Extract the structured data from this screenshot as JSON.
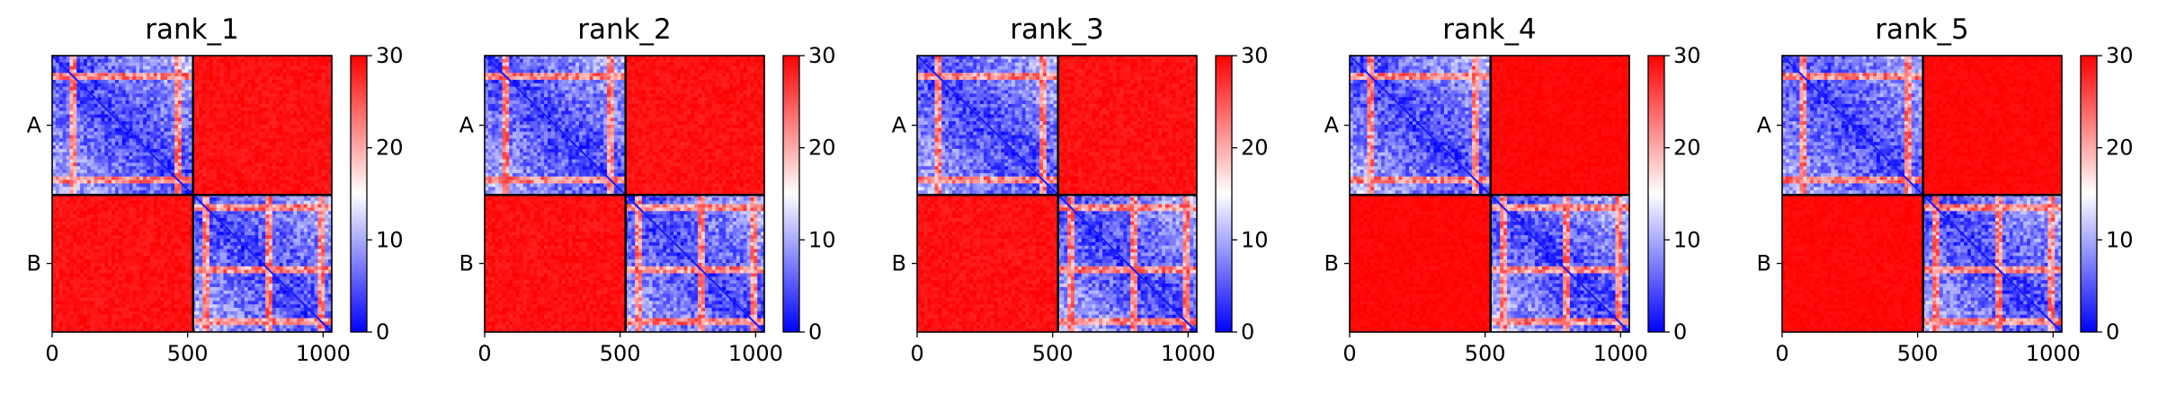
{
  "chart_data": [
    {
      "type": "heatmap",
      "title": "rank_1",
      "xlim": [
        0,
        1032
      ],
      "xticks": [
        0,
        500,
        1000
      ],
      "y_categories": [
        "A",
        "B"
      ],
      "chain_lengths": [
        520,
        512
      ],
      "colorbar": {
        "colormap": "bwr",
        "range": [
          0,
          30
        ],
        "ticks": [
          0,
          10,
          20,
          30
        ]
      },
      "intra_block_range": [
        0,
        10
      ],
      "inter_block_range": [
        28,
        30
      ]
    },
    {
      "type": "heatmap",
      "title": "rank_2",
      "xlim": [
        0,
        1032
      ],
      "xticks": [
        0,
        500,
        1000
      ],
      "y_categories": [
        "A",
        "B"
      ],
      "chain_lengths": [
        520,
        512
      ],
      "colorbar": {
        "colormap": "bwr",
        "range": [
          0,
          30
        ],
        "ticks": [
          0,
          10,
          20,
          30
        ]
      },
      "intra_block_range": [
        0,
        10
      ],
      "inter_block_range": [
        28,
        30
      ]
    },
    {
      "type": "heatmap",
      "title": "rank_3",
      "xlim": [
        0,
        1032
      ],
      "xticks": [
        0,
        500,
        1000
      ],
      "y_categories": [
        "A",
        "B"
      ],
      "chain_lengths": [
        520,
        512
      ],
      "colorbar": {
        "colormap": "bwr",
        "range": [
          0,
          30
        ],
        "ticks": [
          0,
          10,
          20,
          30
        ]
      },
      "intra_block_range": [
        0,
        10
      ],
      "inter_block_range": [
        28,
        30
      ]
    },
    {
      "type": "heatmap",
      "title": "rank_4",
      "xlim": [
        0,
        1032
      ],
      "xticks": [
        0,
        500,
        1000
      ],
      "y_categories": [
        "A",
        "B"
      ],
      "chain_lengths": [
        520,
        512
      ],
      "colorbar": {
        "colormap": "bwr",
        "range": [
          0,
          30
        ],
        "ticks": [
          0,
          10,
          20,
          30
        ]
      },
      "intra_block_range": [
        0,
        10
      ],
      "inter_block_range": [
        29,
        30
      ]
    },
    {
      "type": "heatmap",
      "title": "rank_5",
      "xlim": [
        0,
        1032
      ],
      "xticks": [
        0,
        500,
        1000
      ],
      "y_categories": [
        "A",
        "B"
      ],
      "chain_lengths": [
        520,
        512
      ],
      "colorbar": {
        "colormap": "bwr",
        "range": [
          0,
          30
        ],
        "ticks": [
          0,
          10,
          20,
          30
        ]
      },
      "intra_block_range": [
        0,
        10
      ],
      "inter_block_range": [
        29,
        30
      ]
    }
  ]
}
